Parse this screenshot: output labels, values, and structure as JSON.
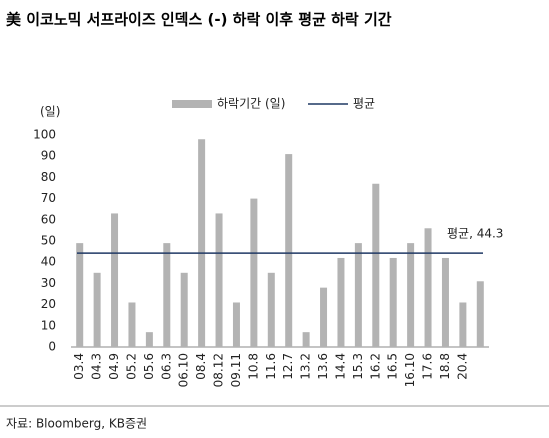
{
  "chart_data": {
    "type": "bar",
    "title": "美 이코노믹 서프라이즈 인덱스 (-) 하락 이후 평균 하락 기간",
    "y_unit": "(일)",
    "source": "자료: Bloomberg, KB증권",
    "categories": [
      "03.4",
      "04.3",
      "04.9",
      "05.2",
      "05.6",
      "06.3",
      "06.10",
      "08.4",
      "08.12",
      "09.11",
      "10.8",
      "11.6",
      "12.7",
      "13.2",
      "13.6",
      "14.4",
      "15.3",
      "16.2",
      "16.5",
      "16.10",
      "17.6",
      "18.8",
      "20.4",
      null
    ],
    "series": [
      {
        "name": "하락기간 (일)",
        "color": "#b3b3b3",
        "values": [
          49,
          35,
          63,
          21,
          7,
          49,
          35,
          98,
          63,
          21,
          70,
          35,
          91,
          7,
          28,
          42,
          49,
          77,
          42,
          49,
          56,
          42,
          21,
          31
        ]
      },
      {
        "name": "평균",
        "color": "#1f3864",
        "value": 44.3
      }
    ],
    "annotation": "평균, 44.3",
    "ylim": [
      0,
      100
    ],
    "yticks": [
      0,
      10,
      20,
      30,
      40,
      50,
      60,
      70,
      80,
      90,
      100
    ],
    "grid": false
  }
}
